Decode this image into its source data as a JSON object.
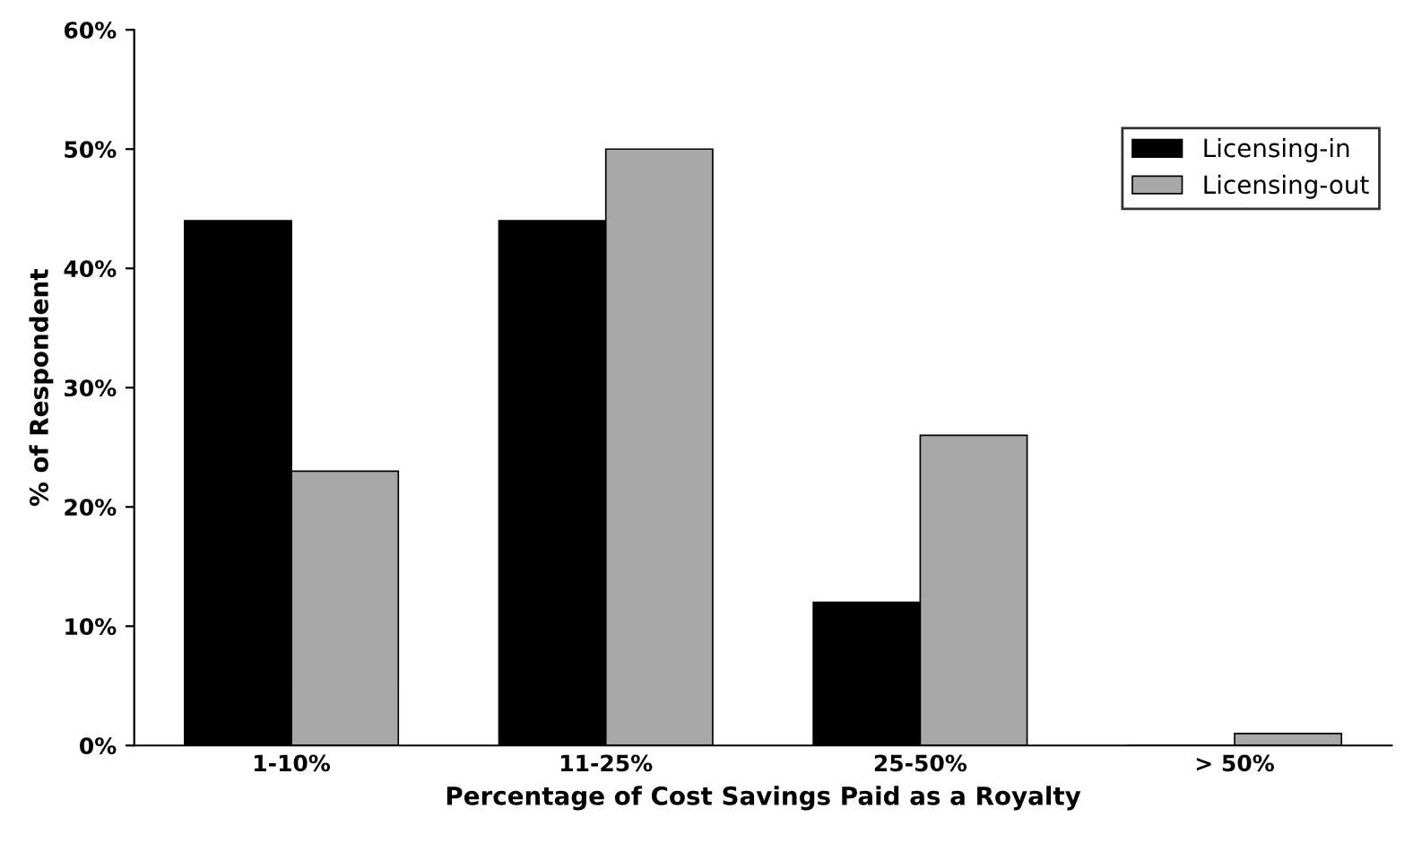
{
  "chart_data": {
    "type": "bar",
    "xlabel": "Percentage of Cost Savings Paid as a Royalty",
    "ylabel": "% of Respondent",
    "categories": [
      "1-10%",
      "11-25%",
      "25-50%",
      "> 50%"
    ],
    "series": [
      {
        "name": "Licensing-in",
        "color": "#000000",
        "values": [
          44,
          44,
          12,
          0
        ]
      },
      {
        "name": "Licensing-out",
        "color": "#a8a8a8",
        "values": [
          23,
          50,
          26,
          1
        ]
      }
    ],
    "ylim": [
      0,
      60
    ],
    "yticks": [
      {
        "value": 0,
        "label": "0%"
      },
      {
        "value": 10,
        "label": "10%"
      },
      {
        "value": 20,
        "label": "20%"
      },
      {
        "value": 30,
        "label": "30%"
      },
      {
        "value": 40,
        "label": "40%"
      },
      {
        "value": 50,
        "label": "50%"
      },
      {
        "value": 60,
        "label": "60%"
      }
    ],
    "grid": false,
    "legend": "top right"
  }
}
